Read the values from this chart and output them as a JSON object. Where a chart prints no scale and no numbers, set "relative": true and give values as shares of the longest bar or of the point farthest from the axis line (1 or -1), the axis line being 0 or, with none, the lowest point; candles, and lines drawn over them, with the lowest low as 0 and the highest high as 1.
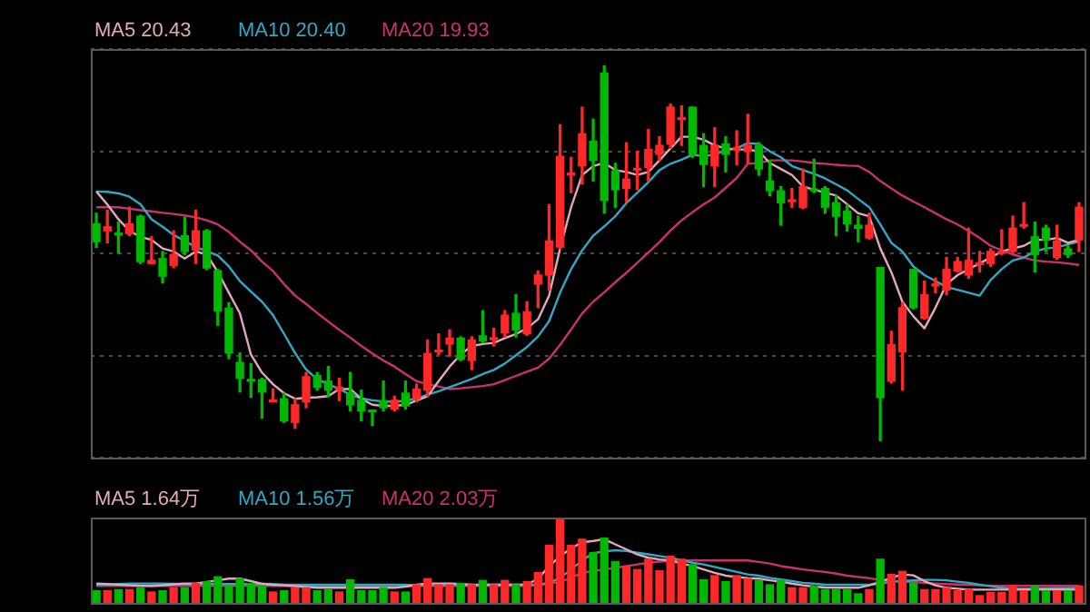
{
  "chart_data": [
    {
      "type": "candlestick",
      "relative": true,
      "grid": "y",
      "legend": "top left",
      "marker": "none",
      "categories": [
        null,
        null,
        null,
        null,
        null,
        null,
        null,
        null,
        null,
        null,
        null,
        null,
        null,
        null,
        null,
        null,
        null,
        null,
        null,
        null,
        null,
        null,
        null,
        null,
        null,
        null,
        null,
        null,
        null,
        null,
        null,
        null,
        null,
        null,
        null,
        null,
        null,
        null,
        null,
        null,
        null,
        null,
        null,
        null,
        null,
        null,
        null,
        null,
        null,
        null,
        null,
        null,
        null,
        null,
        null,
        null,
        null,
        null,
        null,
        null,
        null,
        null,
        null,
        null,
        null,
        null,
        null,
        null,
        null,
        null,
        null,
        null,
        null,
        null,
        null,
        null,
        null,
        null,
        null,
        null,
        null,
        null,
        null,
        null,
        null,
        null,
        null,
        null,
        null,
        null
      ],
      "ohlc": [
        [
          0.579,
          0.607,
          0.516,
          0.531
        ],
        [
          0.56,
          0.615,
          0.528,
          0.571
        ],
        [
          0.552,
          0.583,
          0.5,
          0.549
        ],
        [
          0.552,
          0.623,
          0.547,
          0.579
        ],
        [
          0.599,
          0.602,
          0.473,
          0.478
        ],
        [
          0.473,
          0.544,
          0.472,
          0.481
        ],
        [
          0.486,
          0.505,
          0.421,
          0.439
        ],
        [
          0.468,
          0.56,
          0.462,
          0.497
        ],
        [
          0.547,
          0.596,
          0.497,
          0.505
        ],
        [
          0.509,
          0.615,
          0.473,
          0.56
        ],
        [
          0.56,
          0.563,
          0.457,
          0.461
        ],
        [
          0.454,
          0.457,
          0.308,
          0.346
        ],
        [
          0.354,
          0.368,
          0.219,
          0.234
        ],
        [
          0.209,
          0.234,
          0.13,
          0.167
        ],
        [
          0.163,
          0.206,
          0.116,
          0.159
        ],
        [
          0.163,
          0.167,
          0.06,
          0.13
        ],
        [
          0.104,
          0.138,
          0.104,
          0.108
        ],
        [
          0.112,
          0.127,
          0.049,
          0.053
        ],
        [
          0.049,
          0.112,
          0.033,
          0.096
        ],
        [
          0.104,
          0.182,
          0.088,
          0.171
        ],
        [
          0.174,
          0.182,
          0.135,
          0.143
        ],
        [
          0.159,
          0.198,
          0.119,
          0.135
        ],
        [
          0.135,
          0.167,
          0.107,
          0.143
        ],
        [
          0.127,
          0.182,
          0.08,
          0.096
        ],
        [
          0.108,
          0.135,
          0.053,
          0.08
        ],
        [
          0.08,
          0.08,
          0.041,
          0.077
        ],
        [
          0.107,
          0.159,
          0.08,
          0.088
        ],
        [
          0.085,
          0.119,
          0.08,
          0.108
        ],
        [
          0.127,
          0.159,
          0.085,
          0.093
        ],
        [
          0.112,
          0.151,
          0.104,
          0.138
        ],
        [
          0.135,
          0.269,
          0.119,
          0.233
        ],
        [
          0.237,
          0.285,
          0.23,
          0.241
        ],
        [
          0.258,
          0.296,
          0.226,
          0.274
        ],
        [
          0.274,
          0.277,
          0.214,
          0.217
        ],
        [
          0.214,
          0.277,
          0.19,
          0.269
        ],
        [
          0.28,
          0.347,
          0.261,
          0.266
        ],
        [
          0.27,
          0.3,
          0.253,
          0.274
        ],
        [
          0.288,
          0.347,
          0.277,
          0.335
        ],
        [
          0.34,
          0.39,
          0.277,
          0.296
        ],
        [
          0.285,
          0.371,
          0.281,
          0.344
        ],
        [
          0.418,
          0.453,
          0.355,
          0.442
        ],
        [
          0.442,
          0.63,
          0.402,
          0.533
        ],
        [
          0.517,
          0.843,
          0.512,
          0.759
        ],
        [
          0.709,
          0.756,
          0.662,
          0.712
        ],
        [
          0.733,
          0.89,
          0.685,
          0.819
        ],
        [
          0.799,
          0.858,
          0.693,
          0.748
        ],
        [
          0.981,
          1,
          0.607,
          0.641
        ],
        [
          0.72,
          0.74,
          0.623,
          0.67
        ],
        [
          0.673,
          0.795,
          0.638,
          0.698
        ],
        [
          0.722,
          0.772,
          0.67,
          0.725
        ],
        [
          0.729,
          0.83,
          0.693,
          0.777
        ],
        [
          0.764,
          0.811,
          0.748,
          0.788
        ],
        [
          0.791,
          0.898,
          0.78,
          0.89
        ],
        [
          0.857,
          0.893,
          0.788,
          0.862
        ],
        [
          0.89,
          0.89,
          0.756,
          0.764
        ],
        [
          0.788,
          0.819,
          0.678,
          0.737
        ],
        [
          0.733,
          0.835,
          0.678,
          0.788
        ],
        [
          0.792,
          0.811,
          0.717,
          0.764
        ],
        [
          0.777,
          0.827,
          0.736,
          0.78
        ],
        [
          0.772,
          0.871,
          0.74,
          0.788
        ],
        [
          0.788,
          0.795,
          0.709,
          0.725
        ],
        [
          0.693,
          0.748,
          0.654,
          0.667
        ],
        [
          0.667,
          0.678,
          0.575,
          0.635
        ],
        [
          0.638,
          0.673,
          0.623,
          0.643
        ],
        [
          0.623,
          0.725,
          0.619,
          0.678
        ],
        [
          0.67,
          0.751,
          0.662,
          0.667
        ],
        [
          0.673,
          0.678,
          0.607,
          0.623
        ],
        [
          0.635,
          0.654,
          0.547,
          0.599
        ],
        [
          0.612,
          0.63,
          0.56,
          0.579
        ],
        [
          0.575,
          0.599,
          0.531,
          0.567
        ],
        [
          0.541,
          0.607,
          0.538,
          0.575
        ],
        [
          0.462,
          0.462,
          0,
          0.115
        ],
        [
          0.159,
          0.292,
          0.154,
          0.256
        ],
        [
          0.237,
          0.368,
          0.135,
          0.355
        ],
        [
          0.457,
          0.457,
          0.352,
          0.355
        ],
        [
          0.327,
          0.426,
          0.324,
          0.39
        ],
        [
          0.413,
          0.434,
          0.395,
          0.418
        ],
        [
          0.402,
          0.489,
          0.39,
          0.457
        ],
        [
          0.453,
          0.489,
          0.45,
          0.478
        ],
        [
          0.442,
          0.567,
          0.434,
          0.481
        ],
        [
          0.47,
          0.505,
          0.45,
          0.473
        ],
        [
          0.473,
          0.512,
          0.465,
          0.505
        ],
        [
          0.5,
          0.563,
          0.497,
          0.505
        ],
        [
          0.505,
          0.599,
          0.5,
          0.567
        ],
        [
          0.572,
          0.635,
          0.567,
          0.575
        ],
        [
          0.544,
          0.583,
          0.45,
          0.497
        ],
        [
          0.567,
          0.575,
          0.505,
          0.536
        ],
        [
          0.489,
          0.575,
          0.484,
          0.533
        ],
        [
          0.512,
          0.52,
          0.489,
          0.497
        ],
        [
          0.536,
          0.635,
          0.505,
          0.623
        ]
      ],
      "colors": [
        "#00b800",
        "#ff2828",
        "#00b800",
        "#ff2828",
        "#00b800",
        "#ff2828",
        "#00b800",
        "#ff2828",
        "#00b800",
        "#ff2828",
        "#00b800",
        "#00b800",
        "#00b800",
        "#00b800",
        "#00b800",
        "#00b800",
        "#ff2828",
        "#00b800",
        "#ff2828",
        "#ff2828",
        "#00b800",
        "#00b800",
        "#ff2828",
        "#00b800",
        "#00b800",
        "#00b800",
        "#00b800",
        "#ff2828",
        "#00b800",
        "#ff2828",
        "#ff2828",
        "#ff2828",
        "#ff2828",
        "#00b800",
        "#ff2828",
        "#00b800",
        "#ff2828",
        "#ff2828",
        "#00b800",
        "#ff2828",
        "#ff2828",
        "#ff2828",
        "#ff2828",
        "#ff2828",
        "#ff2828",
        "#00b800",
        "#00b800",
        "#00b800",
        "#ff2828",
        "#ff2828",
        "#ff2828",
        "#ff2828",
        "#ff2828",
        "#ff2828",
        "#00b800",
        "#00b800",
        "#ff2828",
        "#00b800",
        "#ff2828",
        "#ff2828",
        "#00b800",
        "#00b800",
        "#00b800",
        "#ff2828",
        "#ff2828",
        "#00b800",
        "#00b800",
        "#00b800",
        "#00b800",
        "#00b800",
        "#ff2828",
        "#00b800",
        "#ff2828",
        "#ff2828",
        "#00b800",
        "#ff2828",
        "#ff2828",
        "#ff2828",
        "#ff2828",
        "#ff2828",
        "#ff2828",
        "#ff2828",
        "#ff2828",
        "#ff2828",
        "#ff2828",
        "#00b800",
        "#00b800",
        "#ff2828",
        "#00b800",
        "#ff2828"
      ],
      "series": [
        {
          "name": "MA5 20.43",
          "type": "line",
          "color": "#e2a8bc",
          "values": [
            0.665,
            0.63,
            0.591,
            0.56,
            0.544,
            0.536,
            0.513,
            0.505,
            0.486,
            0.505,
            0.497,
            0.45,
            0.395,
            0.34,
            0.23,
            0.182,
            0.151,
            0.127,
            0.112,
            0.115,
            0.116,
            0.119,
            0.138,
            0.138,
            0.112,
            0.096,
            0.093,
            0.093,
            0.096,
            0.107,
            0.119,
            0.159,
            0.198,
            0.23,
            0.253,
            0.258,
            0.261,
            0.274,
            0.285,
            0.3,
            0.324,
            0.387,
            0.513,
            0.623,
            0.709,
            0.733,
            0.741,
            0.722,
            0.717,
            0.709,
            0.717,
            0.748,
            0.78,
            0.811,
            0.811,
            0.803,
            0.788,
            0.78,
            0.777,
            0.777,
            0.772,
            0.741,
            0.725,
            0.709,
            0.678,
            0.67,
            0.662,
            0.654,
            0.631,
            0.607,
            0.599,
            0.513,
            0.45,
            0.371,
            0.332,
            0.3,
            0.355,
            0.418,
            0.442,
            0.458,
            0.473,
            0.489,
            0.505,
            0.513,
            0.52,
            0.536,
            0.536,
            0.541,
            0.528,
            0.536
          ]
        },
        {
          "name": "MA10 20.40",
          "type": "line",
          "color": "#2fa9c4",
          "values": [
            0.665,
            0.664,
            0.66,
            0.651,
            0.631,
            0.591,
            0.571,
            0.549,
            0.533,
            0.517,
            0.506,
            0.494,
            0.465,
            0.426,
            0.398,
            0.371,
            0.335,
            0.285,
            0.234,
            0.19,
            0.164,
            0.151,
            0.138,
            0.123,
            0.113,
            0.108,
            0.105,
            0.104,
            0.107,
            0.113,
            0.123,
            0.132,
            0.143,
            0.154,
            0.165,
            0.178,
            0.189,
            0.206,
            0.228,
            0.25,
            0.278,
            0.319,
            0.395,
            0.458,
            0.508,
            0.547,
            0.572,
            0.599,
            0.634,
            0.662,
            0.69,
            0.722,
            0.739,
            0.75,
            0.763,
            0.759,
            0.764,
            0.775,
            0.78,
            0.794,
            0.792,
            0.772,
            0.756,
            0.733,
            0.722,
            0.712,
            0.7,
            0.684,
            0.668,
            0.645,
            0.623,
            0.577,
            0.528,
            0.505,
            0.465,
            0.442,
            0.426,
            0.41,
            0.403,
            0.395,
            0.387,
            0.429,
            0.458,
            0.481,
            0.489,
            0.505,
            0.513,
            0.516,
            0.524,
            0.531
          ]
        },
        {
          "name": "MA20 19.93",
          "type": "line",
          "color": "#c8336e",
          "values": [
            0.623,
            0.623,
            0.623,
            0.619,
            0.615,
            0.612,
            0.608,
            0.605,
            0.601,
            0.596,
            0.588,
            0.577,
            0.557,
            0.531,
            0.508,
            0.478,
            0.453,
            0.418,
            0.387,
            0.365,
            0.341,
            0.318,
            0.296,
            0.275,
            0.253,
            0.233,
            0.214,
            0.198,
            0.178,
            0.159,
            0.151,
            0.145,
            0.138,
            0.14,
            0.143,
            0.146,
            0.151,
            0.162,
            0.173,
            0.184,
            0.195,
            0.219,
            0.256,
            0.297,
            0.34,
            0.371,
            0.396,
            0.423,
            0.448,
            0.475,
            0.503,
            0.53,
            0.561,
            0.588,
            0.61,
            0.631,
            0.649,
            0.675,
            0.701,
            0.739,
            0.741,
            0.748,
            0.748,
            0.748,
            0.745,
            0.741,
            0.739,
            0.736,
            0.734,
            0.733,
            0.717,
            0.693,
            0.673,
            0.654,
            0.638,
            0.623,
            0.607,
            0.591,
            0.577,
            0.56,
            0.541,
            0.52,
            0.508,
            0.497,
            0.489,
            0.481,
            0.478,
            0.476,
            0.473,
            0.469
          ]
        }
      ]
    },
    {
      "type": "bar",
      "relative": true,
      "legend": "top left",
      "marker": "none",
      "categories": [
        null,
        null,
        null,
        null,
        null,
        null,
        null,
        null,
        null,
        null,
        null,
        null,
        null,
        null,
        null,
        null,
        null,
        null,
        null,
        null,
        null,
        null,
        null,
        null,
        null,
        null,
        null,
        null,
        null,
        null,
        null,
        null,
        null,
        null,
        null,
        null,
        null,
        null,
        null,
        null,
        null,
        null,
        null,
        null,
        null,
        null,
        null,
        null,
        null,
        null,
        null,
        null,
        null,
        null,
        null,
        null,
        null,
        null,
        null,
        null,
        null,
        null,
        null,
        null,
        null,
        null,
        null,
        null,
        null,
        null,
        null,
        null,
        null,
        null,
        null,
        null,
        null,
        null,
        null,
        null,
        null,
        null,
        null,
        null,
        null,
        null,
        null,
        null,
        null,
        null
      ],
      "values": [
        0.145,
        0.145,
        0.159,
        0.159,
        0.181,
        0.13,
        0.145,
        0.181,
        0.181,
        0.232,
        0.254,
        0.312,
        0.203,
        0.29,
        0.232,
        0.203,
        0.13,
        0.145,
        0.181,
        0.181,
        0.145,
        0.159,
        0.13,
        0.275,
        0.145,
        0.145,
        0.181,
        0.13,
        0.13,
        0.217,
        0.29,
        0.217,
        0.217,
        0.232,
        0.217,
        0.268,
        0.217,
        0.268,
        0.217,
        0.254,
        0.362,
        0.688,
        1,
        0.688,
        0.761,
        0.601,
        0.775,
        0.493,
        0.435,
        0.399,
        0.522,
        0.384,
        0.558,
        0.522,
        0.457,
        0.275,
        0.326,
        0.254,
        0.326,
        0.29,
        0.268,
        0.217,
        0.268,
        0.181,
        0.181,
        0.203,
        0.159,
        0.159,
        0.159,
        0.109,
        0.159,
        0.522,
        0.341,
        0.377,
        0.232,
        0.159,
        0.159,
        0.181,
        0.145,
        0.159,
        0.087,
        0.123,
        0.123,
        0.203,
        0.145,
        0.203,
        0.145,
        0.145,
        0.145,
        0.203
      ],
      "colors": [
        "#00b800",
        "#ff2828",
        "#00b800",
        "#ff2828",
        "#00b800",
        "#ff2828",
        "#00b800",
        "#ff2828",
        "#00b800",
        "#ff2828",
        "#00b800",
        "#00b800",
        "#00b800",
        "#00b800",
        "#00b800",
        "#00b800",
        "#ff2828",
        "#00b800",
        "#ff2828",
        "#ff2828",
        "#00b800",
        "#00b800",
        "#ff2828",
        "#00b800",
        "#00b800",
        "#00b800",
        "#00b800",
        "#ff2828",
        "#00b800",
        "#ff2828",
        "#ff2828",
        "#ff2828",
        "#ff2828",
        "#00b800",
        "#ff2828",
        "#00b800",
        "#ff2828",
        "#ff2828",
        "#00b800",
        "#ff2828",
        "#ff2828",
        "#ff2828",
        "#ff2828",
        "#ff2828",
        "#ff2828",
        "#00b800",
        "#00b800",
        "#00b800",
        "#ff2828",
        "#ff2828",
        "#ff2828",
        "#ff2828",
        "#ff2828",
        "#ff2828",
        "#00b800",
        "#00b800",
        "#ff2828",
        "#00b800",
        "#ff2828",
        "#ff2828",
        "#00b800",
        "#00b800",
        "#00b800",
        "#ff2828",
        "#ff2828",
        "#00b800",
        "#00b800",
        "#00b800",
        "#00b800",
        "#00b800",
        "#ff2828",
        "#00b800",
        "#ff2828",
        "#ff2828",
        "#00b800",
        "#ff2828",
        "#ff2828",
        "#ff2828",
        "#ff2828",
        "#ff2828",
        "#ff2828",
        "#ff2828",
        "#ff2828",
        "#ff2828",
        "#ff2828",
        "#00b800",
        "#00b800",
        "#ff2828",
        "#00b800",
        "#ff2828"
      ],
      "series": [
        {
          "name": "MA5 1.64万",
          "type": "line",
          "color": "#e2a8bc",
          "values": [
            0.232,
            0.225,
            0.218,
            0.21,
            0.205,
            0.203,
            0.212,
            0.222,
            0.232,
            0.232,
            0.25,
            0.27,
            0.29,
            0.29,
            0.26,
            0.23,
            0.217,
            0.21,
            0.2,
            0.19,
            0.181,
            0.181,
            0.181,
            0.181,
            0.181,
            0.181,
            0.181,
            0.181,
            0.195,
            0.217,
            0.232,
            0.232,
            0.232,
            0.225,
            0.217,
            0.217,
            0.217,
            0.217,
            0.217,
            0.217,
            0.29,
            0.435,
            0.56,
            0.652,
            0.725,
            0.74,
            0.761,
            0.7,
            0.64,
            0.58,
            0.54,
            0.52,
            0.507,
            0.47,
            0.44,
            0.399,
            0.36,
            0.326,
            0.31,
            0.295,
            0.29,
            0.27,
            0.254,
            0.23,
            0.21,
            0.195,
            0.185,
            0.181,
            0.181,
            0.181,
            0.21,
            0.254,
            0.3,
            0.341,
            0.33,
            0.26,
            0.21,
            0.181,
            0.17,
            0.159,
            0.159,
            0.159,
            0.159,
            0.159,
            0.159,
            0.159,
            0.159,
            0.159,
            0.159,
            0.159
          ]
        },
        {
          "name": "MA10 1.56万",
          "type": "line",
          "color": "#2fa9c4",
          "values": [
            0.217,
            0.22,
            0.225,
            0.23,
            0.232,
            0.232,
            0.232,
            0.228,
            0.225,
            0.225,
            0.225,
            0.225,
            0.225,
            0.225,
            0.225,
            0.225,
            0.225,
            0.217,
            0.217,
            0.217,
            0.217,
            0.217,
            0.217,
            0.217,
            0.217,
            0.217,
            0.217,
            0.217,
            0.217,
            0.21,
            0.21,
            0.21,
            0.21,
            0.21,
            0.21,
            0.217,
            0.217,
            0.217,
            0.217,
            0.217,
            0.217,
            0.24,
            0.3,
            0.4,
            0.507,
            0.594,
            0.615,
            0.63,
            0.62,
            0.6,
            0.58,
            0.56,
            0.54,
            0.51,
            0.48,
            0.46,
            0.43,
            0.4,
            0.37,
            0.34,
            0.326,
            0.3,
            0.28,
            0.26,
            0.24,
            0.23,
            0.217,
            0.217,
            0.217,
            0.217,
            0.217,
            0.23,
            0.254,
            0.26,
            0.27,
            0.275,
            0.275,
            0.27,
            0.254,
            0.24,
            0.217,
            0.2,
            0.181,
            0.17,
            0.168,
            0.172,
            0.175,
            0.177,
            0.178,
            0.18
          ]
        },
        {
          "name": "MA20 2.03万",
          "type": "line",
          "color": "#c8336e",
          "values": [
            0.203,
            0.203,
            0.203,
            0.203,
            0.203,
            0.203,
            0.203,
            0.203,
            0.203,
            0.203,
            0.203,
            0.203,
            0.203,
            0.203,
            0.203,
            0.203,
            0.203,
            0.203,
            0.203,
            0.203,
            0.203,
            0.203,
            0.203,
            0.203,
            0.203,
            0.203,
            0.203,
            0.203,
            0.203,
            0.203,
            0.203,
            0.203,
            0.203,
            0.203,
            0.203,
            0.203,
            0.203,
            0.203,
            0.203,
            0.203,
            0.215,
            0.23,
            0.25,
            0.3,
            0.362,
            0.38,
            0.4,
            0.42,
            0.44,
            0.46,
            0.48,
            0.493,
            0.5,
            0.507,
            0.507,
            0.507,
            0.507,
            0.507,
            0.507,
            0.507,
            0.49,
            0.47,
            0.44,
            0.42,
            0.4,
            0.384,
            0.37,
            0.35,
            0.326,
            0.31,
            0.295,
            0.275,
            0.262,
            0.254,
            0.25,
            0.24,
            0.232,
            0.225,
            0.22,
            0.217,
            0.21,
            0.207,
            0.203,
            0.203,
            0.203,
            0.203,
            0.203,
            0.203,
            0.203,
            0.203
          ]
        }
      ]
    }
  ]
}
